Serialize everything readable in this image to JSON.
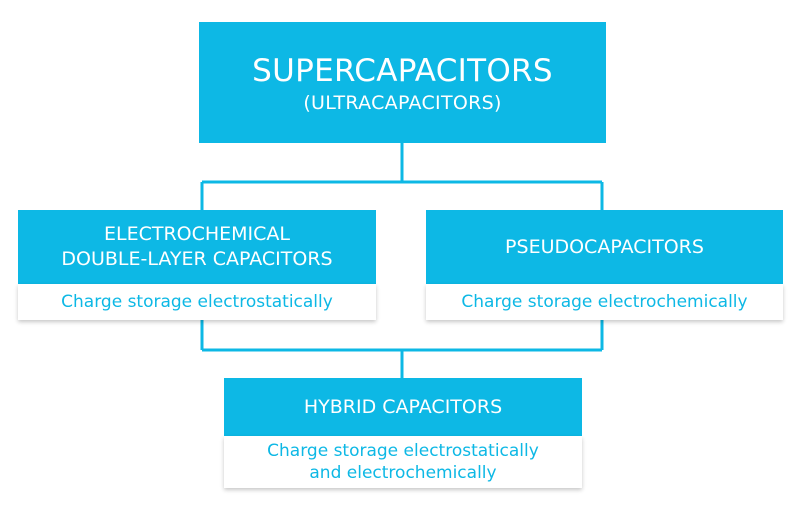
{
  "colors": {
    "accent": "#0DB8E5",
    "connector": "#0DB8E5",
    "box_text": "#FFFFFF"
  },
  "diagram": {
    "top": {
      "title": "SUPERCAPACITORS",
      "subtitle": "(ULTRACAPACITORS)"
    },
    "left": {
      "title_lines": [
        "ELECTROCHEMICAL",
        "DOUBLE-LAYER CAPACITORS"
      ],
      "description": "Charge storage electrostatically"
    },
    "right": {
      "title": "PSEUDOCAPACITORS",
      "description": "Charge storage electrochemically"
    },
    "bottom": {
      "title": "HYBRID CAPACITORS",
      "description_lines": [
        "Charge storage electrostatically",
        "and electrochemically"
      ]
    }
  }
}
